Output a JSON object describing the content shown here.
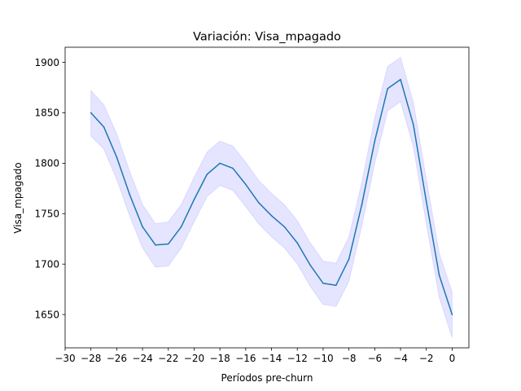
{
  "chart_data": {
    "type": "line",
    "title": "Variación: Visa_mpagado",
    "xlabel": "Períodos pre-churn",
    "ylabel": "Visa_mpagado",
    "xlim": [
      -30,
      1.3
    ],
    "ylim": [
      1617,
      1915
    ],
    "xticks": [
      -30,
      -28,
      -26,
      -24,
      -22,
      -20,
      -18,
      -16,
      -14,
      -12,
      -10,
      -8,
      -6,
      -4,
      -2,
      0
    ],
    "yticks": [
      1650,
      1700,
      1750,
      1800,
      1850,
      1900
    ],
    "grid": false,
    "line_color": "#1f77b4",
    "band_color": "#0000ff",
    "series": [
      {
        "x": [
          -28,
          -27,
          -26,
          -25,
          -24,
          -23,
          -22,
          -21,
          -20,
          -19,
          -18,
          -17,
          -16,
          -15,
          -14,
          -13,
          -12,
          -11,
          -10,
          -9,
          -8,
          -7,
          -6,
          -5,
          -4,
          -3,
          -2,
          -1,
          0
        ],
        "values": [
          1850,
          1836,
          1806,
          1769,
          1737,
          1719,
          1720,
          1737,
          1764,
          1789,
          1800,
          1795,
          1779,
          1761,
          1748,
          1737,
          1721,
          1699,
          1681,
          1679,
          1705,
          1759,
          1822,
          1874,
          1883,
          1838,
          1762,
          1689,
          1650
        ],
        "lower": [
          1827,
          1814,
          1784,
          1748,
          1716,
          1697,
          1698,
          1716,
          1742,
          1767,
          1778,
          1773,
          1757,
          1740,
          1727,
          1716,
          1700,
          1678,
          1660,
          1658,
          1683,
          1738,
          1800,
          1852,
          1861,
          1816,
          1740,
          1667,
          1627
        ],
        "upper": [
          1872,
          1858,
          1829,
          1792,
          1759,
          1740,
          1742,
          1759,
          1786,
          1811,
          1822,
          1817,
          1801,
          1783,
          1770,
          1759,
          1743,
          1721,
          1703,
          1701,
          1727,
          1781,
          1845,
          1896,
          1905,
          1860,
          1784,
          1711,
          1672
        ]
      }
    ]
  }
}
